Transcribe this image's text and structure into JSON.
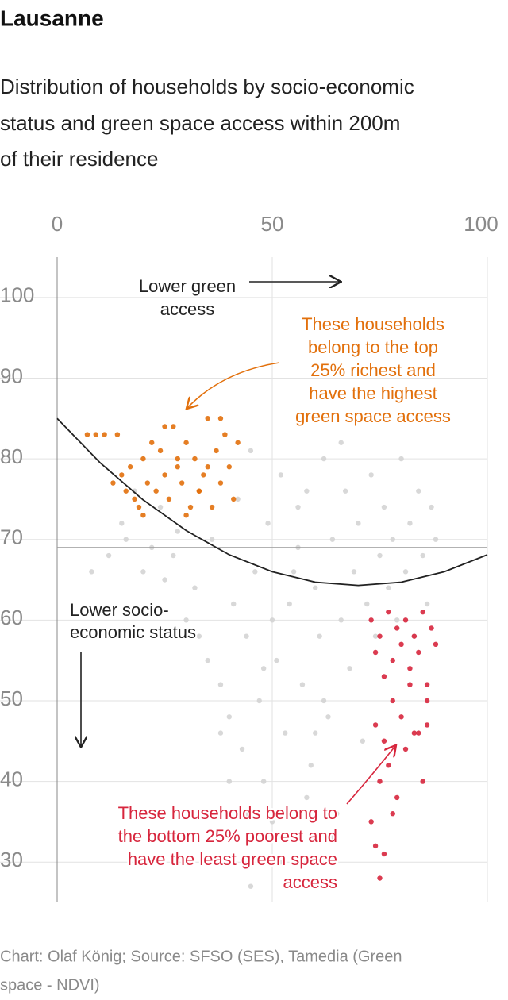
{
  "chart_data": {
    "type": "scatter",
    "title": "Lausanne",
    "subtitle": [
      "Distribution of households by socio-economic",
      "status and green space access within 200m",
      "of their residence"
    ],
    "xlim": [
      0,
      100
    ],
    "xticks": [
      0,
      50,
      100
    ],
    "ylim": [
      25,
      105
    ],
    "yticks": [
      30,
      40,
      50,
      60,
      70,
      80,
      90,
      100
    ],
    "grid": true,
    "reference_line": 69,
    "trend": {
      "color": "#222222",
      "x": [
        0,
        10,
        20,
        30,
        40,
        50,
        60,
        70,
        80,
        90,
        100
      ],
      "y": [
        85,
        79.5,
        74.9,
        71.1,
        68.1,
        66,
        64.7,
        64.3,
        64.7,
        66,
        68.1
      ]
    },
    "series": [
      {
        "color": "#d4d4d4",
        "x": [
          8,
          12,
          15,
          16,
          18,
          20,
          22,
          24,
          25,
          27,
          28,
          30,
          32,
          33,
          35,
          36,
          38,
          40,
          41,
          42,
          43,
          44,
          45,
          46,
          47,
          48,
          49,
          50,
          51,
          52,
          53,
          54,
          55,
          56,
          57,
          58,
          59,
          60,
          61,
          62,
          63,
          64,
          65,
          66,
          67,
          68,
          69,
          70,
          71,
          72,
          73,
          74,
          75,
          76,
          77,
          78,
          79,
          80,
          81,
          82,
          83,
          84,
          85,
          86,
          87,
          88,
          45,
          48,
          52,
          55,
          58,
          62,
          66,
          38,
          40,
          44,
          50,
          56,
          60,
          64
        ],
        "values": [
          66,
          68,
          72,
          70,
          76,
          66,
          69,
          74,
          65,
          68,
          71,
          60,
          64,
          58,
          55,
          70,
          52,
          48,
          62,
          75,
          44,
          58,
          81,
          66,
          50,
          40,
          72,
          35,
          55,
          78,
          46,
          62,
          30,
          69,
          52,
          76,
          42,
          64,
          58,
          80,
          48,
          70,
          36,
          60,
          76,
          54,
          66,
          72,
          45,
          62,
          78,
          58,
          68,
          74,
          64,
          70,
          60,
          80,
          66,
          72,
          58,
          76,
          68,
          62,
          74,
          70,
          27,
          54,
          30,
          66,
          38,
          50,
          82,
          46,
          40,
          36,
          60,
          74,
          46,
          33
        ]
      },
      {
        "color": "#e2700c",
        "x": [
          7,
          9,
          11,
          13,
          14,
          15,
          16,
          17,
          18,
          19,
          20,
          21,
          22,
          23,
          24,
          25,
          26,
          27,
          28,
          29,
          30,
          31,
          32,
          33,
          34,
          35,
          36,
          37,
          38,
          39,
          40,
          41,
          42,
          20,
          25,
          30,
          35,
          38,
          28,
          33
        ],
        "values": [
          83,
          83,
          83,
          77,
          83,
          78,
          76,
          79,
          75,
          74,
          80,
          77,
          82,
          76,
          81,
          78,
          75,
          84,
          79,
          77,
          82,
          74,
          80,
          76,
          78,
          85,
          74,
          81,
          77,
          83,
          79,
          75,
          82,
          73,
          84,
          73,
          79,
          85,
          80,
          76
        ]
      },
      {
        "color": "#d7263d",
        "x": [
          73,
          74,
          75,
          76,
          77,
          78,
          79,
          80,
          81,
          82,
          83,
          84,
          85,
          86,
          87,
          88,
          74,
          76,
          78,
          80,
          82,
          84,
          86,
          75,
          77,
          79,
          81,
          83,
          85,
          73,
          74,
          75,
          76,
          78,
          86
        ],
        "values": [
          60,
          56,
          58,
          53,
          61,
          55,
          59,
          57,
          60,
          54,
          58,
          56,
          61,
          52,
          59,
          57,
          47,
          45,
          50,
          48,
          52,
          46,
          50,
          40,
          42,
          38,
          44,
          46,
          40,
          35,
          32,
          28,
          31,
          36,
          47
        ]
      }
    ],
    "annotations": [
      {
        "lines": [
          "Lower green",
          "access"
        ],
        "color": "#222222"
      },
      {
        "lines": [
          "These households",
          "belong to the top",
          "25% richest and",
          "have the highest",
          "green space access"
        ],
        "color": "#e2700c"
      },
      {
        "lines": [
          "Lower socio-",
          "economic status"
        ],
        "color": "#222222"
      },
      {
        "lines": [
          "These households belong to",
          "the bottom 25% poorest and",
          "have the least green space",
          "access"
        ],
        "color": "#d7263d"
      }
    ],
    "source": [
      "Chart: Olaf König; Source: SFSO (SES), Tamedia (Green",
      "space - NDVI)"
    ]
  }
}
